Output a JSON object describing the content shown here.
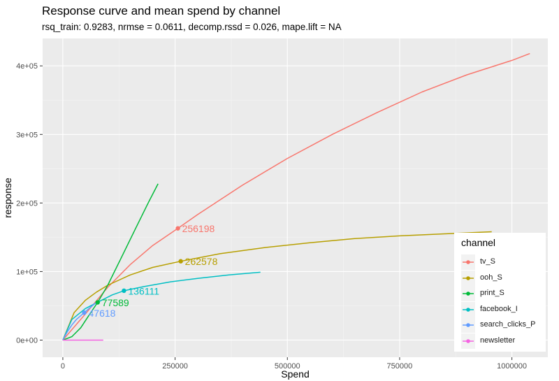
{
  "chart_data": {
    "type": "line",
    "title": "Response curve and mean spend by channel",
    "subtitle": "rsq_train: 0.9283, nrmse = 0.0611, decomp.rssd = 0.026, mape.lift = NA",
    "xlabel": "Spend",
    "ylabel": "response",
    "xlim": [
      -45000,
      1080000
    ],
    "ylim": [
      -25000,
      440000
    ],
    "x_ticks": [
      0,
      250000,
      500000,
      750000,
      1000000
    ],
    "x_tick_labels": [
      "0",
      "250000",
      "500000",
      "750000",
      "1000000"
    ],
    "y_ticks": [
      0,
      100000,
      200000,
      300000,
      400000
    ],
    "y_tick_labels": [
      "0e+00",
      "1e+05",
      "2e+05",
      "3e+05",
      "4e+05"
    ],
    "grid": true,
    "legend": {
      "title": "channel",
      "position": "right-bottom"
    },
    "series": [
      {
        "name": "tv_S",
        "color": "#F8766D",
        "x": [
          0,
          50000,
          100000,
          150000,
          200000,
          256198,
          300000,
          400000,
          500000,
          600000,
          700000,
          800000,
          900000,
          1000000,
          1040000
        ],
        "y": [
          0,
          38000,
          77000,
          110000,
          138000,
          163000,
          183000,
          226000,
          265000,
          300000,
          332000,
          362000,
          387000,
          408000,
          418000
        ],
        "mean_spend": 256198,
        "mean_response": 163000,
        "mean_label": "256198"
      },
      {
        "name": "ooh_S",
        "color": "#B79F00",
        "x": [
          0,
          25000,
          50000,
          75000,
          100000,
          150000,
          200000,
          262578,
          350000,
          450000,
          550000,
          650000,
          750000,
          850000,
          955000
        ],
        "y": [
          0,
          40000,
          58000,
          70000,
          80000,
          95000,
          106000,
          115000,
          126000,
          135000,
          142000,
          148000,
          152000,
          155000,
          158000
        ],
        "mean_spend": 262578,
        "mean_response": 115000,
        "mean_label": "262578"
      },
      {
        "name": "print_S",
        "color": "#00BA38",
        "x": [
          0,
          20000,
          40000,
          60000,
          77589,
          100000,
          130000,
          160000,
          190000,
          212000
        ],
        "y": [
          0,
          5000,
          18000,
          38000,
          55000,
          80000,
          120000,
          160000,
          200000,
          228000
        ],
        "mean_spend": 77589,
        "mean_response": 55000,
        "mean_label": "77589"
      },
      {
        "name": "facebook_I",
        "color": "#00BFC4",
        "x": [
          0,
          20000,
          50000,
          80000,
          110000,
          136111,
          180000,
          240000,
          300000,
          370000,
          440000
        ],
        "y": [
          0,
          30000,
          46000,
          56000,
          66000,
          72000,
          78000,
          85000,
          90000,
          95000,
          99000
        ],
        "mean_spend": 136111,
        "mean_response": 72000,
        "mean_label": "136111"
      },
      {
        "name": "search_clicks_P",
        "color": "#619CFF",
        "x": [
          0,
          10000,
          20000,
          30000,
          47618,
          60000,
          75000
        ],
        "y": [
          0,
          12000,
          22000,
          30000,
          40000,
          47000,
          55000
        ],
        "mean_spend": 47618,
        "mean_response": 40000,
        "mean_label": "47618"
      },
      {
        "name": "newsletter",
        "color": "#F564E3",
        "x": [
          0,
          30000,
          60000,
          90000
        ],
        "y": [
          0,
          0,
          0,
          0
        ]
      }
    ]
  }
}
